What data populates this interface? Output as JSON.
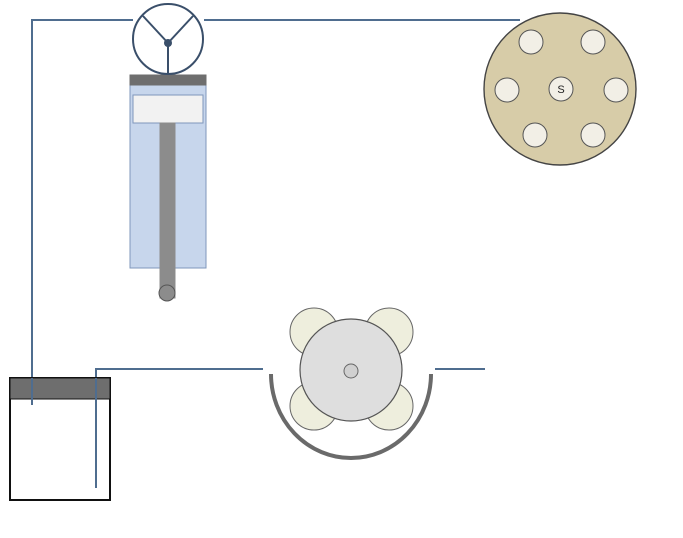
{
  "diagram": {
    "components": {
      "selector_valve": {
        "center_port_label": "S"
      }
    },
    "colors": {
      "line": "#4f6d8f",
      "outline": "#3a4f6a",
      "pump_barrel_fill": "#c7d6ec",
      "pump_barrel_stroke": "#7f97bb",
      "plunger_cap": "#6e6e6e",
      "plunger_rod": "#8c8c8c",
      "piston_head_fill": "#f2f2f2",
      "valve_body": "#d7cca8",
      "valve_port": "#f2efe6",
      "cartridge_fill": "#dedede",
      "cartridge_lobe": "#eeeedd",
      "cartridge_holder": "#6a6a6a",
      "reservoir_cap": "#6e6e6e",
      "reservoir_stroke": "#111111"
    }
  }
}
